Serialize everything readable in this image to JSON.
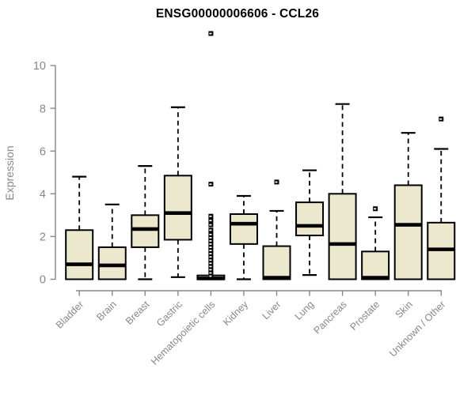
{
  "chart_data": {
    "type": "boxplot",
    "title": "ENSG00000006606 - CCL26",
    "ylabel": "Expression",
    "xlabel": "",
    "ylim": [
      0,
      10
    ],
    "yticks": [
      0,
      2,
      4,
      6,
      8,
      10
    ],
    "grid": false,
    "legend": null,
    "colors": {
      "box_fill": "#ece8cd",
      "box_stroke": "#000000",
      "median": "#000000",
      "axis": "#878787",
      "tick_label": "#878787",
      "title": "#000000",
      "background": "#ffffff"
    },
    "categories": [
      "Bladder",
      "Brain",
      "Breast",
      "Gastric",
      "Hematopoietic cells",
      "Kidney",
      "Liver",
      "Lung",
      "Pancreas",
      "Prostate",
      "Skin",
      "Unknown / Other"
    ],
    "boxes": [
      {
        "label": "Bladder",
        "min": 0,
        "q1": 0,
        "median": 0.7,
        "q3": 2.3,
        "max": 4.8,
        "outliers": []
      },
      {
        "label": "Brain",
        "min": 0,
        "q1": 0,
        "median": 0.65,
        "q3": 1.5,
        "max": 3.5,
        "outliers": []
      },
      {
        "label": "Breast",
        "min": 0,
        "q1": 1.5,
        "median": 2.35,
        "q3": 3.0,
        "max": 5.3,
        "outliers": []
      },
      {
        "label": "Gastric",
        "min": 0.1,
        "q1": 1.85,
        "median": 3.1,
        "q3": 4.85,
        "max": 8.05,
        "outliers": []
      },
      {
        "label": "Hematopoietic cells",
        "min": 0,
        "q1": 0,
        "median": 0.04,
        "q3": 0.18,
        "max": 0.18,
        "outliers": [
          0.15,
          0.3,
          0.45,
          0.6,
          0.75,
          0.9,
          1.05,
          1.2,
          1.35,
          1.5,
          1.65,
          1.8,
          1.95,
          2.1,
          2.3,
          2.55,
          2.75,
          2.95,
          4.45,
          11.5
        ]
      },
      {
        "label": "Kidney",
        "min": 0,
        "q1": 1.65,
        "median": 2.6,
        "q3": 3.05,
        "max": 3.9,
        "outliers": []
      },
      {
        "label": "Liver",
        "min": 0,
        "q1": 0,
        "median": 0.07,
        "q3": 1.55,
        "max": 3.2,
        "outliers": [
          4.55
        ]
      },
      {
        "label": "Lung",
        "min": 0.2,
        "q1": 2.05,
        "median": 2.5,
        "q3": 3.6,
        "max": 5.1,
        "outliers": []
      },
      {
        "label": "Pancreas",
        "min": 0,
        "q1": 0,
        "median": 1.65,
        "q3": 4.0,
        "max": 8.2,
        "outliers": []
      },
      {
        "label": "Prostate",
        "min": 0,
        "q1": 0,
        "median": 0.07,
        "q3": 1.3,
        "max": 2.9,
        "outliers": [
          3.3
        ]
      },
      {
        "label": "Skin",
        "min": 0,
        "q1": 0,
        "median": 2.55,
        "q3": 4.4,
        "max": 6.85,
        "outliers": []
      },
      {
        "label": "Unknown / Other",
        "min": 0,
        "q1": 0,
        "median": 1.4,
        "q3": 2.65,
        "max": 6.1,
        "outliers": [
          7.5
        ]
      }
    ]
  }
}
